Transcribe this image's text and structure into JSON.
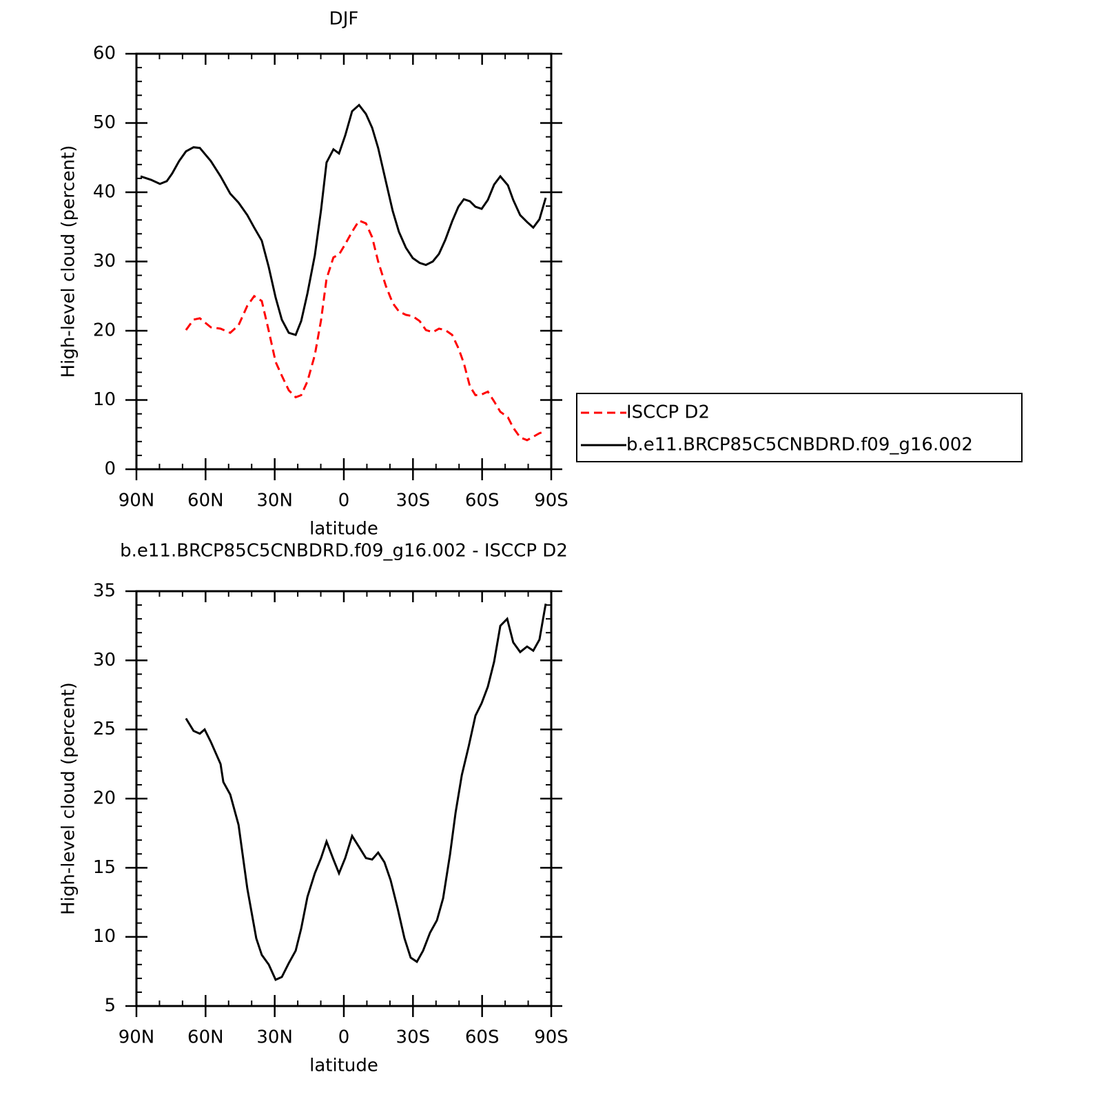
{
  "chart_data": [
    {
      "type": "line",
      "title": "DJF",
      "xlabel": "latitude",
      "ylabel": "High-level cloud (percent)",
      "xlim": [
        90,
        -90
      ],
      "ylim": [
        0,
        60
      ],
      "xticks": [
        {
          "value": 90,
          "label": "90N"
        },
        {
          "value": 60,
          "label": "60N"
        },
        {
          "value": 30,
          "label": "30N"
        },
        0,
        {
          "value": -30,
          "label": "30S"
        },
        {
          "value": -60,
          "label": "60S"
        },
        {
          "value": -90,
          "label": "90S"
        }
      ],
      "yticks": [
        0,
        10,
        20,
        30,
        40,
        50,
        60
      ],
      "legend": "right",
      "x": [
        88.2,
        83.7,
        79.8,
        76.8,
        74.5,
        71.5,
        68.5,
        65.2,
        62.5,
        57.7,
        53.5,
        49.3,
        45.7,
        41.9,
        38.9,
        35.6,
        32.6,
        29.6,
        26.9,
        23.9,
        20.9,
        18.5,
        15.8,
        12.6,
        9.9,
        7.5,
        4.5,
        2.1,
        -0.6,
        -3.6,
        -6.6,
        -9.6,
        -12.3,
        -14.9,
        -18.2,
        -21.2,
        -23.9,
        -26.9,
        -29.9,
        -32.9,
        -35.6,
        -38.6,
        -41.3,
        -44.0,
        -47.0,
        -49.7,
        -52.1,
        -54.7,
        -57.1,
        -59.8,
        -62.5,
        -65.2,
        -67.9,
        -71.2,
        -73.5,
        -76.5,
        -79.5,
        -82.2,
        -84.9,
        -87.6
      ],
      "series": [
        {
          "name": "ISCCP D2",
          "color": "#ff0000",
          "line_style": "dashed",
          "values": [
            null,
            null,
            null,
            null,
            null,
            null,
            20.1,
            21.6,
            21.8,
            20.5,
            20.3,
            19.7,
            20.8,
            23.6,
            25.0,
            24.3,
            20.0,
            15.5,
            13.5,
            11.4,
            10.4,
            10.7,
            12.7,
            16.5,
            21.5,
            27.5,
            30.6,
            31.0,
            32.5,
            34.3,
            35.9,
            35.5,
            33.5,
            30.0,
            26.5,
            24.0,
            22.8,
            22.3,
            22.1,
            21.4,
            20.1,
            19.8,
            20.3,
            20.1,
            19.4,
            17.5,
            15.3,
            12.0,
            10.7,
            10.8,
            11.2,
            9.8,
            8.3,
            7.5,
            6.0,
            4.6,
            4.2,
            4.7,
            5.2,
            5.5
          ]
        },
        {
          "name": "b.e11.BRCP85C5CNBDRD.f09_g16.002",
          "color": "#000000",
          "line_style": "solid",
          "values": [
            42.3,
            41.8,
            41.2,
            41.6,
            42.7,
            44.5,
            45.9,
            46.5,
            46.4,
            44.5,
            42.3,
            39.8,
            38.5,
            36.7,
            34.9,
            33.0,
            29.2,
            24.8,
            21.6,
            19.7,
            19.4,
            21.4,
            25.4,
            30.9,
            37.4,
            44.3,
            46.2,
            45.6,
            48.2,
            51.7,
            52.6,
            51.3,
            49.3,
            46.4,
            41.6,
            37.3,
            34.3,
            32.0,
            30.5,
            29.8,
            29.5,
            30.0,
            31.1,
            33.1,
            35.8,
            37.9,
            39.0,
            38.7,
            37.9,
            37.6,
            38.9,
            41.1,
            42.3,
            41.0,
            38.9,
            36.7,
            35.7,
            34.9,
            36.1,
            39.2
          ]
        }
      ]
    },
    {
      "type": "line",
      "title": "b.e11.BRCP85C5CNBDRD.f09_g16.002 - ISCCP D2",
      "xlabel": "latitude",
      "ylabel": "High-level cloud (percent)",
      "xlim": [
        90,
        -90
      ],
      "ylim": [
        5,
        35
      ],
      "xticks": [
        {
          "value": 90,
          "label": "90N"
        },
        {
          "value": 60,
          "label": "60N"
        },
        {
          "value": 30,
          "label": "30N"
        },
        0,
        {
          "value": -30,
          "label": "30S"
        },
        {
          "value": -60,
          "label": "60S"
        },
        {
          "value": -90,
          "label": "90S"
        }
      ],
      "yticks": [
        5,
        10,
        15,
        20,
        25,
        30,
        35
      ],
      "x": [
        68.5,
        65.2,
        62.5,
        60.4,
        57.7,
        53.5,
        52.3,
        49.3,
        45.7,
        41.9,
        38.0,
        35.6,
        32.6,
        29.6,
        26.9,
        23.9,
        20.9,
        18.5,
        15.8,
        12.6,
        9.9,
        7.5,
        4.5,
        2.1,
        -0.6,
        -3.6,
        -6.6,
        -9.6,
        -12.3,
        -14.9,
        -17.6,
        -20.3,
        -23.3,
        -26.3,
        -29.0,
        -31.7,
        -34.4,
        -37.4,
        -40.4,
        -43.1,
        -46.1,
        -48.5,
        -51.2,
        -54.2,
        -57.1,
        -59.8,
        -62.5,
        -65.2,
        -67.9,
        -70.9,
        -73.5,
        -76.5,
        -79.5,
        -82.2,
        -84.9,
        -87.6
      ],
      "series": [
        {
          "name": "b.e11.BRCP85C5CNBDRD.f09_g16.002 - ISCCP D2",
          "color": "#000000",
          "line_style": "solid",
          "values": [
            25.8,
            24.9,
            24.7,
            25.0,
            24.1,
            22.5,
            21.2,
            20.3,
            18.1,
            13.5,
            9.9,
            8.7,
            8.0,
            6.9,
            7.1,
            8.1,
            9.0,
            10.6,
            12.9,
            14.6,
            15.7,
            16.9,
            15.6,
            14.6,
            15.7,
            17.3,
            16.5,
            15.7,
            15.6,
            16.1,
            15.4,
            14.1,
            12.1,
            9.9,
            8.5,
            8.2,
            9.0,
            10.3,
            11.2,
            12.8,
            16.0,
            19.0,
            21.7,
            23.8,
            26.0,
            26.9,
            28.1,
            29.9,
            32.5,
            33.0,
            31.3,
            30.6,
            31.0,
            30.7,
            31.5,
            34.1
          ]
        }
      ]
    }
  ]
}
